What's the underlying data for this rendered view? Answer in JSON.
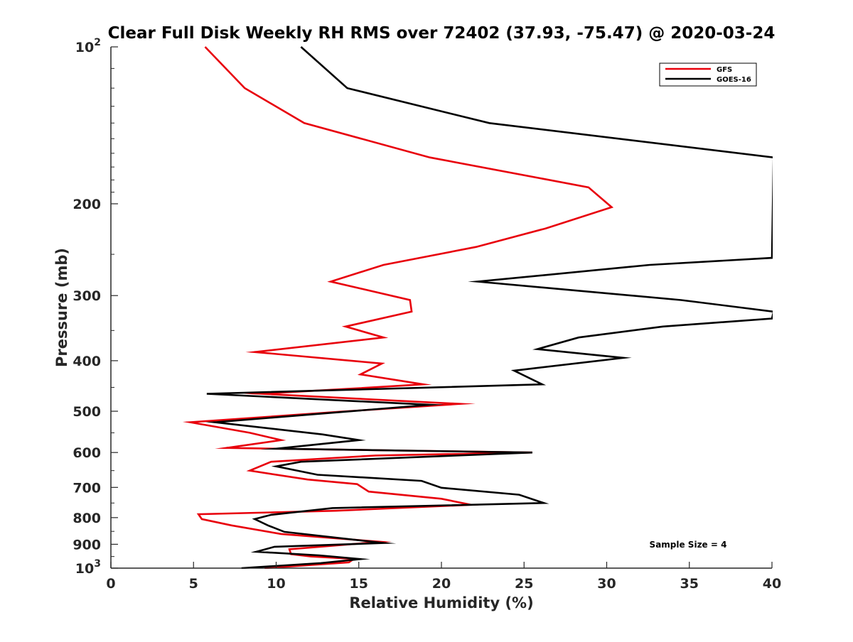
{
  "chart_data": {
    "type": "line",
    "title": "Clear Full Disk Weekly RH RMS over 72402 (37.93, -75.47) @ 2020-03-24",
    "xlabel": "Relative Humidity (%)",
    "ylabel": "Pressure (mb)",
    "xlim": [
      0,
      40
    ],
    "ylim": [
      100,
      1000
    ],
    "yscale": "log",
    "y_reversed": true,
    "x_ticks": [
      "0",
      "5",
      "10",
      "15",
      "20",
      "25",
      "30",
      "35",
      "40"
    ],
    "y_ticks": [
      {
        "value": 100,
        "base": "10",
        "exp": "2"
      },
      {
        "value": 200,
        "label": "200"
      },
      {
        "value": 300,
        "label": "300"
      },
      {
        "value": 400,
        "label": "400"
      },
      {
        "value": 500,
        "label": "500"
      },
      {
        "value": 600,
        "label": "600"
      },
      {
        "value": 700,
        "label": "700"
      },
      {
        "value": 800,
        "label": "800"
      },
      {
        "value": 900,
        "label": "900"
      },
      {
        "value": 1000,
        "base": "10",
        "exp": "3"
      }
    ],
    "legend_position": "top-right",
    "annotation": "Sample Size = 4",
    "series": [
      {
        "name": "GFS",
        "color": "#e8000b",
        "points": [
          [
            5.7,
            100
          ],
          [
            8.1,
            120
          ],
          [
            11.7,
            140
          ],
          [
            19.3,
            163
          ],
          [
            28.9,
            186
          ],
          [
            30.3,
            203
          ],
          [
            26.3,
            223
          ],
          [
            22.1,
            242
          ],
          [
            16.5,
            262
          ],
          [
            13.3,
            282
          ],
          [
            18.1,
            306
          ],
          [
            18.2,
            322
          ],
          [
            14.2,
            344
          ],
          [
            16.5,
            361
          ],
          [
            8.7,
            385
          ],
          [
            16.4,
            405
          ],
          [
            15.1,
            425
          ],
          [
            18.9,
            444
          ],
          [
            14.3,
            453
          ],
          [
            9.1,
            463
          ],
          [
            21.1,
            484
          ],
          [
            13.9,
            501
          ],
          [
            4.8,
            525
          ],
          [
            8.4,
            550
          ],
          [
            10.3,
            568
          ],
          [
            7.0,
            588
          ],
          [
            25.5,
            600
          ],
          [
            16.0,
            608
          ],
          [
            9.7,
            625
          ],
          [
            8.4,
            650
          ],
          [
            11.9,
            676
          ],
          [
            14.9,
            690
          ],
          [
            15.6,
            713
          ],
          [
            20.0,
            736
          ],
          [
            21.8,
            756
          ],
          [
            13.6,
            776
          ],
          [
            5.3,
            788
          ],
          [
            5.5,
            805
          ],
          [
            7.3,
            828
          ],
          [
            10.3,
            860
          ],
          [
            16.3,
            890
          ],
          [
            10.8,
            920
          ],
          [
            10.9,
            940
          ],
          [
            12.1,
            950
          ],
          [
            14.7,
            960
          ],
          [
            14.4,
            975
          ],
          [
            9.3,
            1000
          ]
        ]
      },
      {
        "name": "GOES-16",
        "color": "#000000",
        "points": [
          [
            11.5,
            100
          ],
          [
            14.3,
            120
          ],
          [
            22.9,
            140
          ],
          [
            40.1,
            163
          ],
          [
            40.0,
            254
          ],
          [
            32.6,
            262
          ],
          [
            22.2,
            282
          ],
          [
            34.5,
            306
          ],
          [
            40.1,
            322
          ],
          [
            40.0,
            332
          ],
          [
            33.4,
            344
          ],
          [
            28.3,
            361
          ],
          [
            25.8,
            380
          ],
          [
            31.0,
            395
          ],
          [
            24.4,
            418
          ],
          [
            26.1,
            444
          ],
          [
            5.8,
            463
          ],
          [
            19.3,
            486
          ],
          [
            6.3,
            525
          ],
          [
            12.8,
            554
          ],
          [
            15.0,
            568
          ],
          [
            10.0,
            590
          ],
          [
            25.5,
            600
          ],
          [
            11.5,
            625
          ],
          [
            10.0,
            638
          ],
          [
            12.5,
            662
          ],
          [
            18.8,
            680
          ],
          [
            20.0,
            701
          ],
          [
            24.7,
            723
          ],
          [
            26.2,
            750
          ],
          [
            13.4,
            767
          ],
          [
            9.7,
            790
          ],
          [
            8.7,
            805
          ],
          [
            9.5,
            828
          ],
          [
            10.5,
            852
          ],
          [
            16.5,
            895
          ],
          [
            9.9,
            910
          ],
          [
            8.8,
            930
          ],
          [
            12.6,
            945
          ],
          [
            15.1,
            961
          ],
          [
            12.7,
            978
          ],
          [
            7.9,
            1000
          ]
        ]
      }
    ]
  }
}
